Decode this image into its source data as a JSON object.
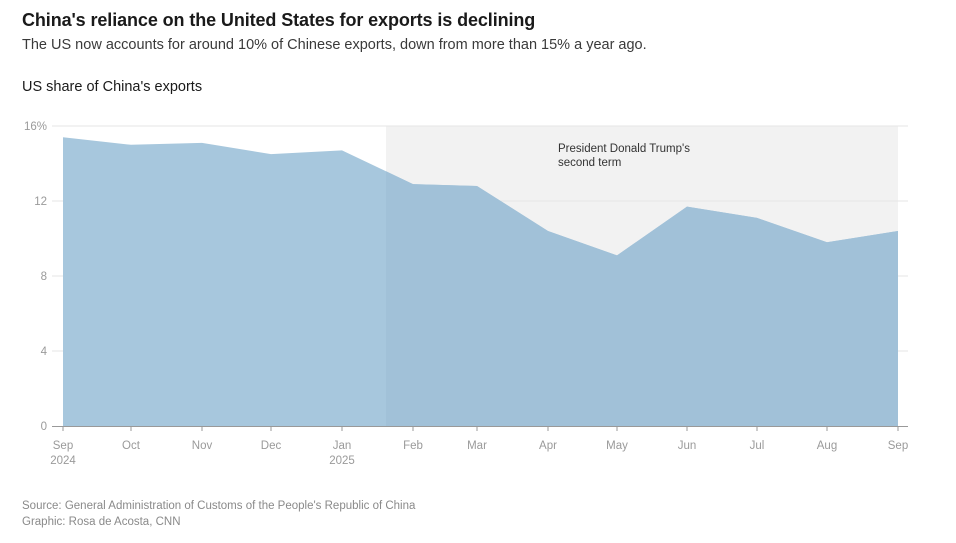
{
  "header": {
    "title": "China's reliance on the United States for exports is declining",
    "subtitle": "The US now accounts for around 10% of Chinese exports, down from more than 15% a year ago.",
    "chart_label": "US share of China's exports"
  },
  "footer": {
    "source": "Source: General Administration of Customs of the People's Republic of China",
    "credit": "Graphic: Rosa de Acosta, CNN"
  },
  "colors": {
    "area": "#a7c7dd",
    "area_shaded": "#a1c1d8",
    "shaded_band": "#f2f2f2",
    "gridline": "#e6e6e6"
  },
  "chart_data": {
    "type": "area",
    "title": "US share of China's exports",
    "xlabel": "",
    "ylabel": "",
    "ylim": [
      0,
      16
    ],
    "yticks": [
      0,
      4,
      8,
      12,
      16
    ],
    "ytick_labels": [
      "0",
      "4",
      "8",
      "12",
      "16%"
    ],
    "grid": true,
    "x": [
      "2024-09",
      "2024-10",
      "2024-11",
      "2024-12",
      "2025-01",
      "2025-02",
      "2025-03",
      "2025-04",
      "2025-05",
      "2025-06",
      "2025-07",
      "2025-08",
      "2025-09"
    ],
    "xtick_labels": [
      {
        "line1": "Sep",
        "line2": "2024"
      },
      {
        "line1": "Oct",
        "line2": ""
      },
      {
        "line1": "Nov",
        "line2": ""
      },
      {
        "line1": "Dec",
        "line2": ""
      },
      {
        "line1": "Jan",
        "line2": "2025"
      },
      {
        "line1": "Feb",
        "line2": ""
      },
      {
        "line1": "Mar",
        "line2": ""
      },
      {
        "line1": "Apr",
        "line2": ""
      },
      {
        "line1": "May",
        "line2": ""
      },
      {
        "line1": "Jun",
        "line2": ""
      },
      {
        "line1": "Jul",
        "line2": ""
      },
      {
        "line1": "Aug",
        "line2": ""
      },
      {
        "line1": "Sep",
        "line2": ""
      }
    ],
    "series": [
      {
        "name": "US share of China's exports (%)",
        "values": [
          15.4,
          15.0,
          15.1,
          14.5,
          14.7,
          12.9,
          12.8,
          10.4,
          9.1,
          11.7,
          11.1,
          9.8,
          10.4
        ]
      }
    ],
    "annotation": {
      "label_line1": "President Donald Trump's",
      "label_line2": "second term",
      "start": "2025-01-20",
      "end": "2025-09"
    }
  }
}
